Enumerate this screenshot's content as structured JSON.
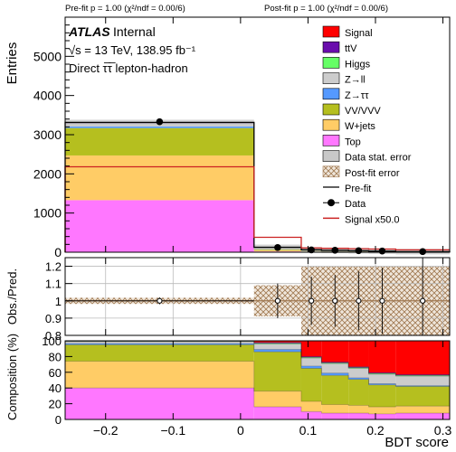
{
  "header": {
    "prefit_text": "Pre-fit   p = 1.00 (χ²/ndf = 0.00/6)",
    "postfit_text": "Post-fit p = 1.00 (χ²/ndf = 0.00/6)"
  },
  "atlas": {
    "label": "ATLAS",
    "status": "Internal",
    "energy_line": "√s = 13 TeV, 138.95 fb⁻¹",
    "region_line": "Direct τ̅τ̅ lepton-hadron"
  },
  "colors": {
    "Signal": "#ff0000",
    "ttV": "#6a0dad",
    "Higgs": "#66ff66",
    "Zll": "#cccccc",
    "Ztautau": "#5599ff",
    "VV": "#b5bf1f",
    "Wjets": "#ffcc66",
    "Top": "#ff77ff",
    "stat_error": "#c8c8c8",
    "postfit_error": "#c8a078",
    "signal_line": "#cc2222"
  },
  "legend": [
    {
      "key": "Signal",
      "label": "Signal",
      "style": "box"
    },
    {
      "key": "ttV",
      "label": "ttV",
      "style": "box"
    },
    {
      "key": "Higgs",
      "label": "Higgs",
      "style": "box"
    },
    {
      "key": "Zll",
      "label": "Z→ll",
      "style": "box"
    },
    {
      "key": "Ztautau",
      "label": "Z→ττ",
      "style": "box"
    },
    {
      "key": "VV",
      "label": "VV/VVV",
      "style": "box"
    },
    {
      "key": "Wjets",
      "label": "W+jets",
      "style": "box"
    },
    {
      "key": "Top",
      "label": "Top",
      "style": "box"
    },
    {
      "key": "stat_error",
      "label": "Data stat. error",
      "style": "box"
    },
    {
      "key": "postfit_error",
      "label": "Post-fit error",
      "style": "hatch"
    },
    {
      "key": "prefit",
      "label": "Pre-fit",
      "style": "line"
    },
    {
      "key": "data",
      "label": "Data",
      "style": "marker"
    },
    {
      "key": "signal_line",
      "label": "Signal x50.0",
      "style": "redline"
    }
  ],
  "chart_data": {
    "type": "bar",
    "xlabel": "BDT score",
    "bin_edges": [
      -0.26,
      0.02,
      0.09,
      0.12,
      0.16,
      0.19,
      0.23,
      0.31
    ],
    "main": {
      "ylabel": "Entries",
      "ylim": [
        0,
        6000
      ],
      "yticks": [
        0,
        1000,
        2000,
        3000,
        4000,
        5000
      ],
      "stack_order": [
        "Top",
        "Wjets",
        "VV",
        "Ztautau",
        "Zll",
        "Higgs",
        "ttV",
        "Signal"
      ],
      "series": [
        {
          "name": "Top",
          "values": [
            1330,
            20,
            8,
            6,
            5,
            4,
            2
          ]
        },
        {
          "name": "W+jets",
          "values": [
            1140,
            25,
            9,
            7,
            5,
            4,
            2
          ]
        },
        {
          "name": "VV/VVV",
          "values": [
            700,
            45,
            28,
            20,
            15,
            10,
            4
          ]
        },
        {
          "name": "Z→ττ",
          "values": [
            40,
            8,
            4,
            4,
            3,
            2,
            1
          ]
        },
        {
          "name": "Z→ll",
          "values": [
            70,
            20,
            8,
            6,
            5,
            3,
            2
          ]
        },
        {
          "name": "Higgs",
          "values": [
            5,
            2,
            1,
            1,
            1,
            1,
            0
          ]
        },
        {
          "name": "ttV",
          "values": [
            25,
            2,
            1,
            1,
            1,
            0,
            0
          ]
        },
        {
          "name": "Signal",
          "values": [
            3,
            3,
            3,
            3,
            3,
            3,
            3
          ]
        }
      ],
      "data_x": [
        -0.12,
        0.055,
        0.105,
        0.14,
        0.175,
        0.21,
        0.27
      ],
      "data_y": [
        3330,
        120,
        60,
        50,
        40,
        30,
        15
      ],
      "signal_x50": [
        2180,
        380,
        110,
        100,
        90,
        80,
        60
      ]
    },
    "ratio": {
      "ylabel": "Obs./Pred.",
      "ylim": [
        0.8,
        1.25
      ],
      "yticks": [
        "0.8",
        "0.9",
        "1",
        "1.1",
        "1.2"
      ],
      "ytick_values": [
        0.8,
        0.9,
        1.0,
        1.1,
        1.2
      ],
      "points": [
        1,
        1,
        1,
        1,
        1,
        1,
        1
      ],
      "errors": [
        0.02,
        0.1,
        0.14,
        0.15,
        0.17,
        0.19,
        0.27
      ],
      "postfit_band": [
        0.018,
        0.09,
        0.2,
        0.2,
        0.2,
        0.2,
        0.2
      ]
    },
    "composition": {
      "ylabel": "Composition (%)",
      "ylim": [
        0,
        100
      ],
      "yticks": [
        "0",
        "20",
        "40",
        "60",
        "80",
        "100"
      ],
      "ytick_values": [
        0,
        20,
        40,
        60,
        80,
        100
      ],
      "fractions": [
        {
          "name": "Top",
          "values": [
            40,
            16,
            10,
            8,
            8,
            7,
            8
          ]
        },
        {
          "name": "W+jets",
          "values": [
            34,
            20,
            13,
            11,
            10,
            9,
            9
          ]
        },
        {
          "name": "VV/VVV",
          "values": [
            21,
            50,
            42,
            37,
            33,
            28,
            25
          ]
        },
        {
          "name": "Z→ττ",
          "values": [
            1.5,
            3,
            3,
            3,
            2,
            1.5,
            1
          ]
        },
        {
          "name": "Z→ll",
          "values": [
            2.5,
            7,
            10,
            12,
            12,
            12,
            12
          ]
        },
        {
          "name": "Higgs",
          "values": [
            0.3,
            1,
            1,
            1,
            1,
            1,
            1
          ]
        },
        {
          "name": "ttV",
          "values": [
            0.7,
            1,
            1,
            1,
            1,
            1,
            1
          ]
        },
        {
          "name": "Signal",
          "values": [
            0,
            2,
            20,
            27,
            33,
            40.5,
            43
          ]
        }
      ]
    },
    "xticks": [
      "−0.2",
      "−0.1",
      "0",
      "0.1",
      "0.2",
      "0.3"
    ],
    "xtick_values": [
      -0.2,
      -0.1,
      0,
      0.1,
      0.2,
      0.3
    ]
  }
}
